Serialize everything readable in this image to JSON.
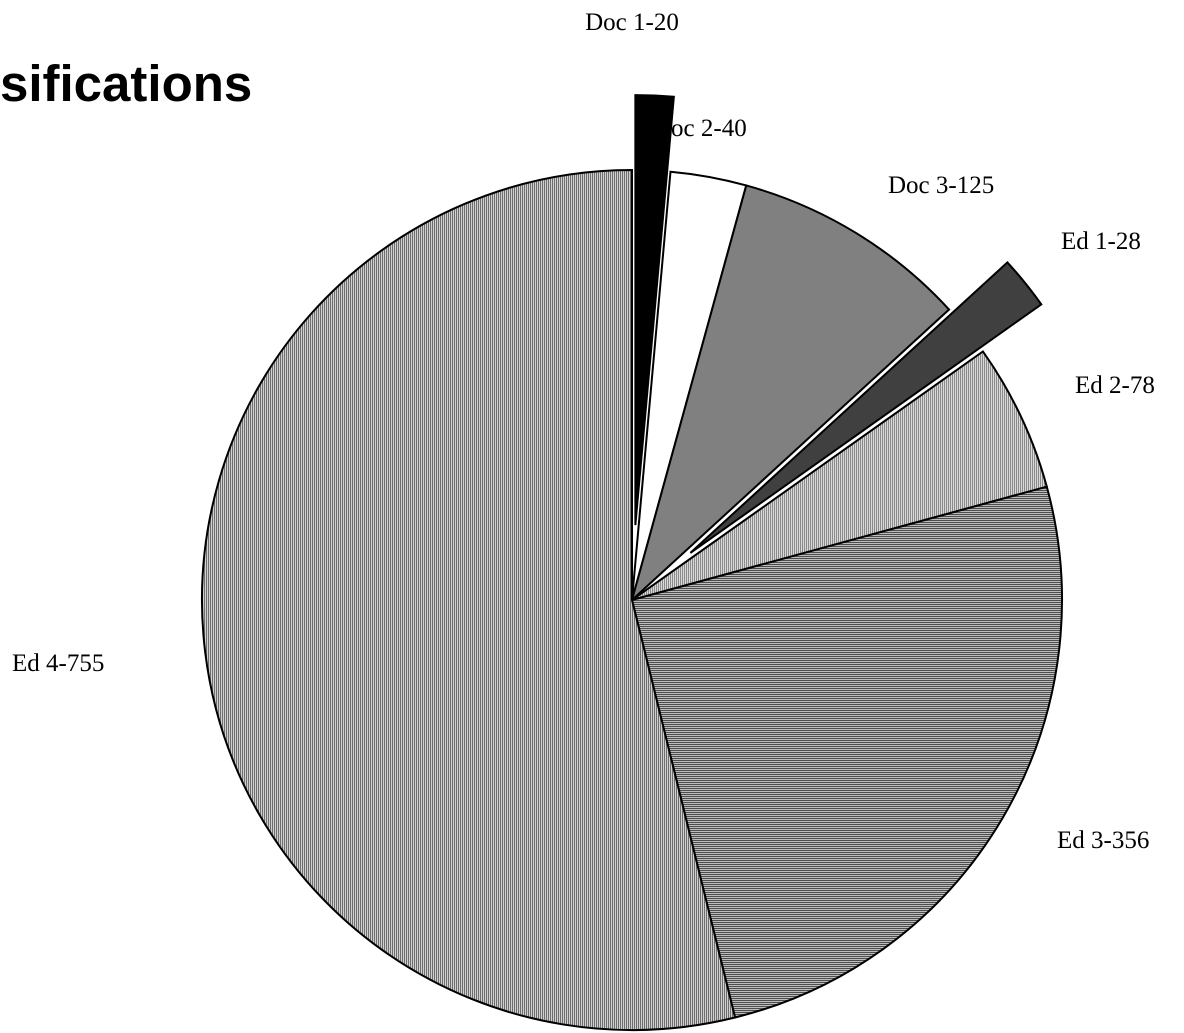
{
  "page": {
    "title": "sifications"
  },
  "chart_data": {
    "type": "pie",
    "title": "",
    "exploded": [
      "Doc 1",
      "Ed 1"
    ],
    "slices": [
      {
        "category": "Doc 1",
        "value": 20,
        "label": "Doc 1-20",
        "pattern": "solid",
        "color": "#000000"
      },
      {
        "category": "Doc 2",
        "value": 40,
        "label": "Doc 2-40",
        "pattern": "solid",
        "color": "#ffffff"
      },
      {
        "category": "Doc 3",
        "value": 125,
        "label": "Doc 3-125",
        "pattern": "solid",
        "color": "#808080"
      },
      {
        "category": "Ed 1",
        "value": 28,
        "label": "Ed 1-28",
        "pattern": "solid",
        "color": "#404040"
      },
      {
        "category": "Ed 2",
        "value": 78,
        "label": "Ed 2-78",
        "pattern": "vertical",
        "color": "#bfbfbf"
      },
      {
        "category": "Ed 3",
        "value": 356,
        "label": "Ed 3-356",
        "pattern": "horizontal",
        "color": "#8c8c8c"
      },
      {
        "category": "Ed 4",
        "value": 755,
        "label": "Ed 4-755",
        "pattern": "vertical",
        "color": "#a6a6a6"
      }
    ]
  }
}
